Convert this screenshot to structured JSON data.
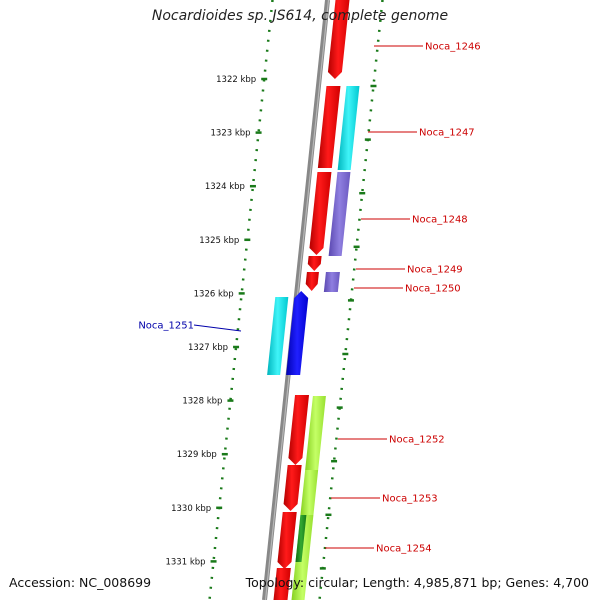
{
  "title": "Nocardioides sp. JS614, complete genome",
  "footer": {
    "accession": "Accession: NC_008699",
    "stats": "Topology: circular; Length: 4,985,871 bp; Genes: 4,700"
  },
  "colors": {
    "backbone": "#888888",
    "ruler": "#1a7a1a",
    "forward_label": "#cc0000",
    "reverse_label": "#0000aa",
    "cds_red": "#ff0000",
    "cyan": "#00e5ee",
    "purple": "#7b68cc",
    "blue": "#0000ee",
    "lime": "#a8f03c",
    "green": "#1a8a1a"
  },
  "ruler_ticks": [
    "1322 kbp",
    "1323 kbp",
    "1324 kbp",
    "1325 kbp",
    "1326 kbp",
    "1327 kbp",
    "1328 kbp",
    "1329 kbp",
    "1330 kbp",
    "1331 kbp"
  ],
  "genes": [
    {
      "name": "Noca_1246",
      "strand": "forward",
      "color": "red"
    },
    {
      "name": "Noca_1247",
      "strand": "forward",
      "color": "red"
    },
    {
      "name": "Noca_1248",
      "strand": "forward",
      "color": "red"
    },
    {
      "name": "Noca_1249",
      "strand": "forward",
      "color": "red"
    },
    {
      "name": "Noca_1250",
      "strand": "forward",
      "color": "red"
    },
    {
      "name": "Noca_1251",
      "strand": "reverse",
      "color": "blue"
    },
    {
      "name": "Noca_1252",
      "strand": "forward",
      "color": "red"
    },
    {
      "name": "Noca_1253",
      "strand": "forward",
      "color": "red"
    },
    {
      "name": "Noca_1254",
      "strand": "forward",
      "color": "red"
    }
  ]
}
